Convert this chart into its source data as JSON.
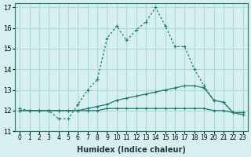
{
  "xlabel": "Humidex (Indice chaleur)",
  "ylabel": "",
  "bg_color": "#d6eff0",
  "grid_color": "#b0d8da",
  "line_color": "#1a7a6e",
  "xlim": [
    -0.5,
    23.5
  ],
  "ylim": [
    11,
    17.2
  ],
  "yticks": [
    11,
    12,
    13,
    14,
    15,
    16,
    17
  ],
  "xticks": [
    0,
    1,
    2,
    3,
    4,
    5,
    6,
    7,
    8,
    9,
    10,
    11,
    12,
    13,
    14,
    15,
    16,
    17,
    18,
    19,
    20,
    21,
    22,
    23
  ],
  "xtick_labels": [
    "0",
    "1",
    "2",
    "3",
    "4",
    "5",
    "6",
    "7",
    "8",
    "9",
    "10",
    "11",
    "12",
    "13",
    "14",
    "15",
    "16",
    "17",
    "18",
    "19",
    "20",
    "21",
    "22",
    "23"
  ],
  "series": [
    {
      "x": [
        0,
        1,
        2,
        3,
        4,
        5,
        6,
        7,
        8,
        9,
        10,
        11,
        12,
        13,
        14,
        15,
        16,
        17,
        18,
        19,
        20,
        21,
        22,
        23
      ],
      "y": [
        12.1,
        12.0,
        12.0,
        12.0,
        11.6,
        11.6,
        12.3,
        13.0,
        13.5,
        15.5,
        16.1,
        15.4,
        15.9,
        16.3,
        17.0,
        16.1,
        15.1,
        15.1,
        14.0,
        13.2,
        12.5,
        12.4,
        11.9,
        11.9
      ],
      "style": "dotted",
      "marker": "+"
    },
    {
      "x": [
        0,
        1,
        2,
        3,
        4,
        5,
        6,
        7,
        8,
        9,
        10,
        11,
        12,
        13,
        14,
        15,
        16,
        17,
        18,
        19,
        20,
        21,
        22,
        23
      ],
      "y": [
        12.0,
        12.0,
        12.0,
        12.0,
        12.0,
        12.0,
        12.0,
        12.1,
        12.2,
        12.3,
        12.5,
        12.6,
        12.7,
        12.8,
        12.9,
        13.0,
        13.1,
        13.2,
        13.2,
        13.1,
        12.5,
        12.4,
        11.9,
        11.9
      ],
      "style": "solid",
      "marker": "+"
    },
    {
      "x": [
        0,
        1,
        2,
        3,
        4,
        5,
        6,
        7,
        8,
        9,
        10,
        11,
        12,
        13,
        14,
        15,
        16,
        17,
        18,
        19,
        20,
        21,
        22,
        23
      ],
      "y": [
        12.0,
        12.0,
        12.0,
        12.0,
        12.0,
        12.0,
        12.0,
        12.0,
        12.0,
        12.1,
        12.1,
        12.1,
        12.1,
        12.1,
        12.1,
        12.1,
        12.1,
        12.1,
        12.1,
        12.1,
        12.0,
        12.0,
        11.9,
        11.8
      ],
      "style": "solid",
      "marker": "+"
    }
  ]
}
